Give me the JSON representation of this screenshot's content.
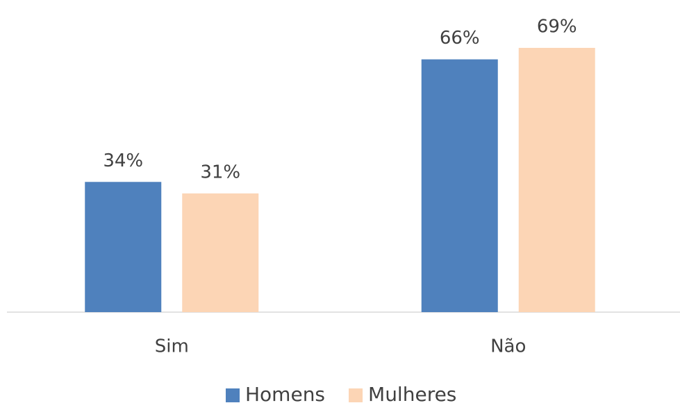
{
  "chart_data": {
    "type": "bar",
    "categories": [
      "Sim",
      "Não"
    ],
    "series": [
      {
        "name": "Homens",
        "color": "#4f81bd",
        "values": [
          34,
          66
        ],
        "value_labels": [
          "34%",
          "66%"
        ]
      },
      {
        "name": "Mulheres",
        "color": "#fcd5b5",
        "values": [
          31,
          69
        ],
        "value_labels": [
          "31%",
          "69%"
        ]
      }
    ],
    "legend": "bottom"
  }
}
